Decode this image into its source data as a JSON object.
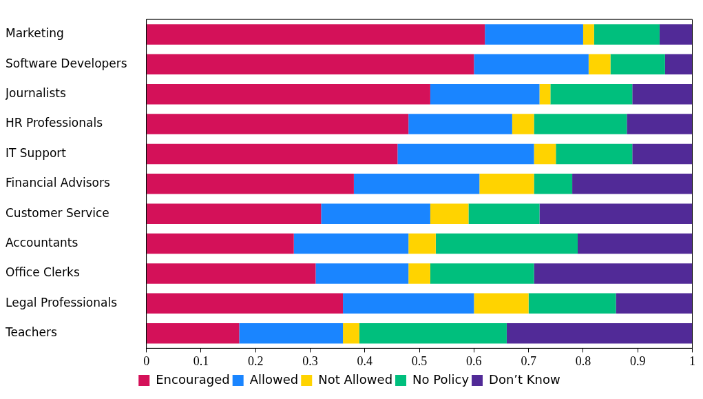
{
  "chart_data": {
    "type": "bar",
    "orientation": "horizontal",
    "stacked": true,
    "categories": [
      "Marketing",
      "Software Developers",
      "Journalists",
      "HR Professionals",
      "IT Support",
      "Financial Advisors",
      "Customer Service",
      "Accountants",
      "Office Clerks",
      "Legal Professionals",
      "Teachers"
    ],
    "series": [
      {
        "name": "Encouraged",
        "color": "#d41159",
        "values": [
          0.62,
          0.6,
          0.52,
          0.48,
          0.46,
          0.38,
          0.32,
          0.27,
          0.31,
          0.36,
          0.17
        ]
      },
      {
        "name": "Allowed",
        "color": "#1a85ff",
        "values": [
          0.18,
          0.21,
          0.2,
          0.19,
          0.25,
          0.23,
          0.2,
          0.21,
          0.17,
          0.24,
          0.19
        ]
      },
      {
        "name": "Not Allowed",
        "color": "#ffd300",
        "values": [
          0.02,
          0.04,
          0.02,
          0.04,
          0.04,
          0.1,
          0.07,
          0.05,
          0.04,
          0.1,
          0.03
        ]
      },
      {
        "name": "No Policy",
        "color": "#00bf7d",
        "values": [
          0.12,
          0.1,
          0.15,
          0.17,
          0.14,
          0.07,
          0.13,
          0.26,
          0.19,
          0.16,
          0.27
        ]
      },
      {
        "name": "Don’t Know",
        "color": "#512a97",
        "values": [
          0.06,
          0.05,
          0.11,
          0.12,
          0.11,
          0.22,
          0.28,
          0.21,
          0.29,
          0.14,
          0.34
        ]
      }
    ],
    "xlim": [
      0,
      1
    ],
    "xticks": [
      0,
      0.1,
      0.2,
      0.3,
      0.4,
      0.5,
      0.6,
      0.7,
      0.8,
      0.9,
      1
    ],
    "grid": false,
    "legend": "bottom"
  }
}
